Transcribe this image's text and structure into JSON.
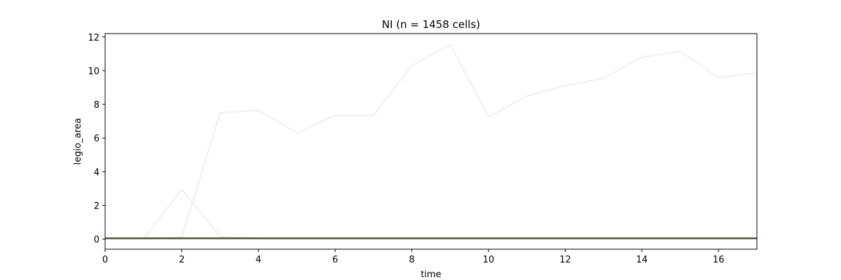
{
  "chart_data": {
    "type": "line",
    "title": "NI (n = 1458 cells)",
    "xlabel": "time",
    "ylabel": "legio_area",
    "xlim": [
      0,
      17
    ],
    "ylim": [
      -0.6,
      12.2
    ],
    "xticks": [
      0,
      2,
      4,
      6,
      8,
      10,
      12,
      14,
      16
    ],
    "yticks": [
      0,
      2,
      4,
      6,
      8,
      10,
      12
    ],
    "grid": false,
    "legend": "none",
    "series": [
      {
        "color": "#efefef",
        "x": [
          0,
          1,
          2,
          3,
          4,
          5,
          6,
          7,
          8,
          9,
          10,
          11,
          12,
          13,
          14,
          15,
          16,
          17
        ],
        "y": [
          0,
          0,
          0.1,
          7.5,
          7.65,
          6.3,
          7.35,
          7.35,
          10.3,
          11.55,
          7.25,
          8.5,
          9.1,
          9.55,
          10.8,
          11.15,
          9.6,
          9.85
        ]
      },
      {
        "color": "#efefef",
        "x": [
          0,
          1,
          2,
          3,
          4,
          5,
          6,
          7,
          8,
          9,
          10,
          11,
          12,
          13,
          14,
          15,
          16,
          17
        ],
        "y": [
          0,
          0,
          2.95,
          0.15,
          0,
          0,
          0,
          0,
          0,
          0,
          0,
          0,
          0,
          0,
          0,
          0,
          0,
          0
        ]
      },
      {
        "color": "#a2b86c",
        "x": [
          0,
          17
        ],
        "y": [
          0,
          0
        ]
      },
      {
        "color": "#222222",
        "x": [
          0,
          17
        ],
        "y": [
          0.06,
          0.06
        ]
      }
    ]
  }
}
